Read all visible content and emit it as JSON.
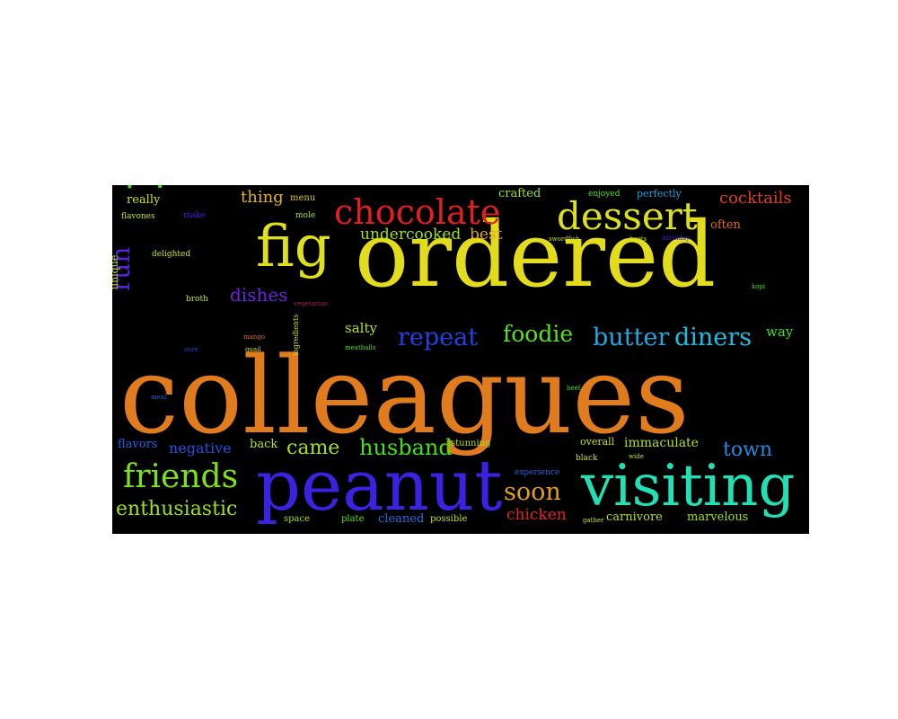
{
  "words": [
    {
      "text": "colleagues",
      "color": "#e07b1e"
    },
    {
      "text": "ordered",
      "color": "#e3dc1d"
    },
    {
      "text": "peanut",
      "color": "#3a22e0"
    },
    {
      "text": "visiting",
      "color": "#22e0b4"
    },
    {
      "text": "fig",
      "color": "#dfe01d"
    },
    {
      "text": "rib",
      "color": "#36e01f"
    },
    {
      "text": "chocolate",
      "color": "#e02020"
    },
    {
      "text": "dessert",
      "color": "#dbe01d"
    },
    {
      "text": "friends",
      "color": "#7de01d"
    },
    {
      "text": "butter",
      "color": "#1fa7e0"
    },
    {
      "text": "diners",
      "color": "#1fbce0"
    },
    {
      "text": "repeat",
      "color": "#2240e0"
    },
    {
      "text": "foodie",
      "color": "#5ce01d"
    },
    {
      "text": "soon",
      "color": "#e0a01d"
    },
    {
      "text": "run",
      "color": "#5a22e0"
    },
    {
      "text": "husband",
      "color": "#43e01d"
    },
    {
      "text": "came",
      "color": "#a0e01d"
    },
    {
      "text": "enthusiastic",
      "color": "#9fe01d"
    },
    {
      "text": "dishes",
      "color": "#6a22e0"
    },
    {
      "text": "town",
      "color": "#1f8ce0"
    },
    {
      "text": "cocktails",
      "color": "#e03c1d"
    },
    {
      "text": "undercooked",
      "color": "#9fe01d"
    },
    {
      "text": "best",
      "color": "#e0a31d"
    },
    {
      "text": "thing",
      "color": "#e0b41d"
    },
    {
      "text": "chicken",
      "color": "#e0271d"
    },
    {
      "text": "negative",
      "color": "#2250e0"
    },
    {
      "text": "salty",
      "color": "#b8e01d"
    },
    {
      "text": "immaculate",
      "color": "#b8e01d"
    },
    {
      "text": "carnivore",
      "color": "#b8e01d"
    },
    {
      "text": "marvelous",
      "color": "#9ee01d"
    },
    {
      "text": "cleaned",
      "color": "#2270e0"
    },
    {
      "text": "crafted",
      "color": "#a3e01d"
    },
    {
      "text": "way",
      "color": "#3fe01d"
    },
    {
      "text": "back",
      "color": "#b8e01d"
    },
    {
      "text": "flavors",
      "color": "#2261e0"
    },
    {
      "text": "really",
      "color": "#c9e01d"
    },
    {
      "text": "often",
      "color": "#e06a1d"
    },
    {
      "text": "overall",
      "color": "#c6e01d"
    },
    {
      "text": "stunning",
      "color": "#b8e01d"
    },
    {
      "text": "possible",
      "color": "#b8e01d"
    },
    {
      "text": "plate",
      "color": "#5de01d"
    },
    {
      "text": "space",
      "color": "#a3e01d"
    },
    {
      "text": "unique",
      "color": "#c9e01d"
    },
    {
      "text": "perfectly",
      "color": "#1fa3e0"
    },
    {
      "text": "enjoyed",
      "color": "#4ee01d"
    },
    {
      "text": "menu",
      "color": "#dcc61d"
    },
    {
      "text": "mole",
      "color": "#a8e01d"
    },
    {
      "text": "flavones",
      "color": "#c9e01d"
    },
    {
      "text": "make",
      "color": "#3822e0"
    },
    {
      "text": "delighted",
      "color": "#c9e01d"
    },
    {
      "text": "broth",
      "color": "#c9e01d"
    },
    {
      "text": "vegetarian",
      "color": "#a02050"
    },
    {
      "text": "experience",
      "color": "#2260e0"
    },
    {
      "text": "black",
      "color": "#c9e01d"
    },
    {
      "text": "wide",
      "color": "#c9e01d"
    },
    {
      "text": "gather",
      "color": "#c9e01d"
    },
    {
      "text": "beef",
      "color": "#45e01d"
    },
    {
      "text": "swordfish",
      "color": "#c9e01d"
    },
    {
      "text": "beets",
      "color": "#c9e01d"
    },
    {
      "text": "birthday",
      "color": "#3a22e0"
    },
    {
      "text": "kopi",
      "color": "#45e01d"
    },
    {
      "text": "mango",
      "color": "#e06a1d"
    },
    {
      "text": "quail",
      "color": "#c9e01d"
    },
    {
      "text": "meatballs",
      "color": "#45e01d"
    },
    {
      "text": "sure",
      "color": "#2240e0"
    },
    {
      "text": "meal",
      "color": "#2260e0"
    },
    {
      "text": "ingredients",
      "color": "#c9e01d"
    }
  ]
}
